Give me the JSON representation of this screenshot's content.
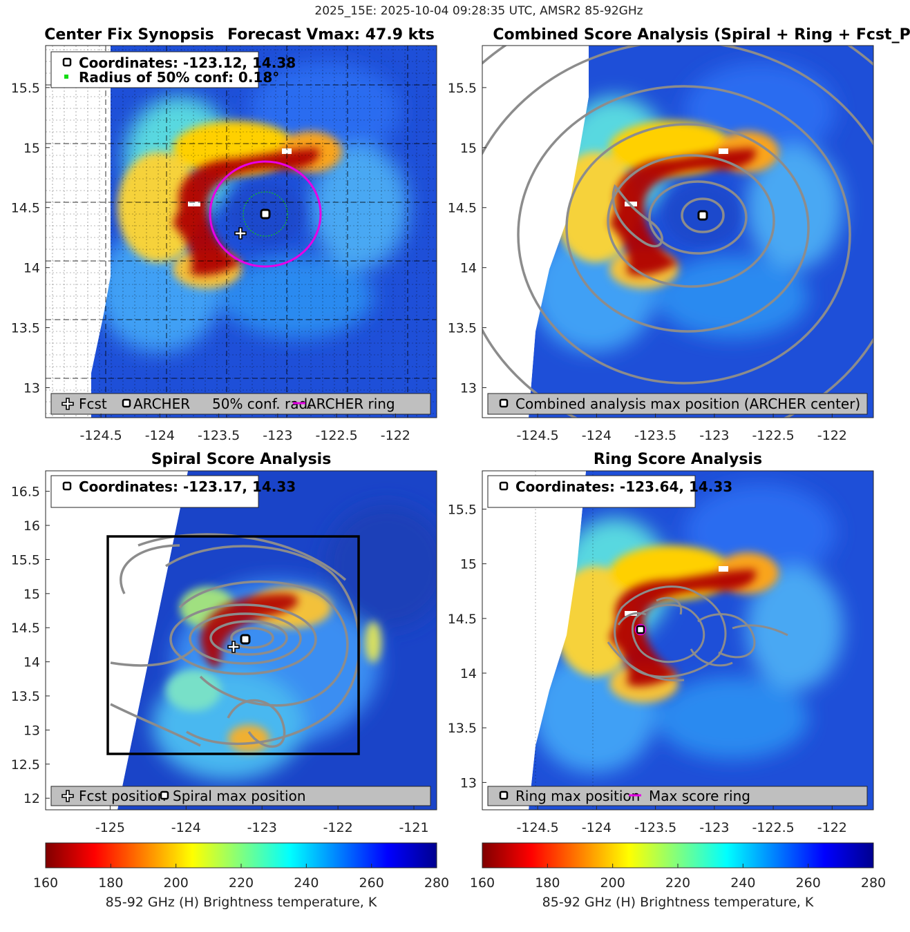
{
  "figure": {
    "suptitle": "2025_15E: 2025-10-04 09:28:35 UTC, AMSR2 85-92GHz"
  },
  "panels": {
    "synopsis": {
      "title_left": "Center Fix Synopsis",
      "title_right": "Forecast Vmax: 47.9 kts",
      "info_coords": "Coordinates: -123.12, 14.38",
      "info_radius": "Radius of 50% conf: 0.18°",
      "legend": {
        "fcst": "Fcst",
        "archer": "ARCHER",
        "conf": "50% conf. rad.",
        "ring": "ARCHER ring"
      }
    },
    "combined": {
      "title": "Combined Score Analysis (Spiral + Ring + Fcst_Pe",
      "legend": {
        "max": "Combined analysis max position (ARCHER center)"
      }
    },
    "spiral": {
      "title": "Spiral Score Analysis",
      "info_coords": "Coordinates: -123.17, 14.33",
      "legend": {
        "fcst": "Fcst position",
        "max": "Spiral max position"
      }
    },
    "ring": {
      "title": "Ring Score Analysis",
      "info_coords": "Coordinates: -123.64, 14.33",
      "legend": {
        "max": "Ring max position",
        "ring": "Max score ring"
      }
    }
  },
  "colorbar": {
    "label": "85-92 GHz (H) Brightness temperature, K",
    "ticks": [
      "160",
      "180",
      "200",
      "220",
      "240",
      "260",
      "280"
    ]
  },
  "chart_data": [
    {
      "type": "heatmap",
      "name": "Center Fix Synopsis",
      "title": "Center Fix Synopsis    Forecast Vmax: 47.9 kts",
      "xlim": [
        -124.97,
        -121.65
      ],
      "ylim": [
        12.75,
        15.85
      ],
      "xticks": [
        -124.5,
        -124,
        -123.5,
        -123,
        -122.5,
        -122
      ],
      "xtick_labels": [
        "-124.5",
        "-124",
        "-123.5",
        "-123",
        "-122.5",
        "-122"
      ],
      "yticks": [
        13,
        13.5,
        14,
        14.5,
        15,
        15.5
      ],
      "ytick_labels": [
        "13",
        "13.5",
        "14",
        "14.5",
        "15",
        "15.5"
      ],
      "archer_center": [
        -123.12,
        14.38
      ],
      "forecast_position": [
        -123.33,
        14.23
      ],
      "conf_radius_deg": 0.18,
      "archer_ring_radius_deg": 0.47,
      "colormap": "jet",
      "clim": [
        160,
        280
      ]
    },
    {
      "type": "heatmap",
      "name": "Combined Score Analysis",
      "title": "Combined Score Analysis (Spiral + Ring + Fcst_Pe",
      "xlim": [
        -124.97,
        -121.65
      ],
      "ylim": [
        12.75,
        15.85
      ],
      "xticks": [
        -124.5,
        -124,
        -123.5,
        -123,
        -122.5,
        -122
      ],
      "xtick_labels": [
        "-124.5",
        "-124",
        "-123.5",
        "-123",
        "-122.5",
        "-122"
      ],
      "yticks": [
        13,
        13.5,
        14,
        14.5,
        15,
        15.5
      ],
      "ytick_labels": [
        "13",
        "13.5",
        "14",
        "14.5",
        "15",
        "15.5"
      ],
      "max_position": [
        -123.12,
        14.38
      ],
      "contours": "combined score (gray)",
      "colormap": "jet",
      "clim": [
        160,
        280
      ]
    },
    {
      "type": "heatmap",
      "name": "Spiral Score Analysis",
      "title": "Spiral Score Analysis",
      "xlim": [
        -125.85,
        -120.7
      ],
      "ylim": [
        11.83,
        16.8
      ],
      "xticks": [
        -125,
        -124,
        -123,
        -122,
        -121
      ],
      "xtick_labels": [
        "-125",
        "-124",
        "-123",
        "-122",
        "-121"
      ],
      "yticks": [
        12,
        12.5,
        13,
        13.5,
        14,
        14.5,
        15,
        15.5,
        16,
        16.5
      ],
      "ytick_labels": [
        "12",
        "12.5",
        "13",
        "13.5",
        "14",
        "14.5",
        "15",
        "15.5",
        "16",
        "16.5"
      ],
      "max_position": [
        -123.17,
        14.33
      ],
      "forecast_position": [
        -123.33,
        14.23
      ],
      "search_box": {
        "lon": [
          -125.05,
          -121.73
        ],
        "lat": [
          12.63,
          15.83
        ]
      },
      "contours": "spiral score (gray)",
      "colormap": "jet",
      "clim": [
        160,
        280
      ]
    },
    {
      "type": "heatmap",
      "name": "Ring Score Analysis",
      "title": "Ring Score Analysis",
      "xlim": [
        -124.97,
        -121.65
      ],
      "ylim": [
        12.75,
        15.85
      ],
      "xticks": [
        -124.5,
        -124,
        -123.5,
        -123,
        -122.5,
        -122
      ],
      "xtick_labels": [
        "-124.5",
        "-124",
        "-123.5",
        "-123",
        "-122.5",
        "-122"
      ],
      "yticks": [
        13,
        13.5,
        14,
        14.5,
        15,
        15.5
      ],
      "ytick_labels": [
        "13",
        "13.5",
        "14",
        "14.5",
        "15",
        "15.5"
      ],
      "max_position": [
        -123.64,
        14.33
      ],
      "max_score_ring_radius_deg": 0.05,
      "contours": "ring score (gray)",
      "colormap": "jet",
      "clim": [
        160,
        280
      ]
    },
    {
      "type": "colorbar",
      "name": "Brightness temperature colorbar",
      "label": "85-92 GHz (H) Brightness temperature, K",
      "range": [
        160,
        280
      ],
      "ticks": [
        160,
        180,
        200,
        220,
        240,
        260,
        280
      ]
    }
  ]
}
